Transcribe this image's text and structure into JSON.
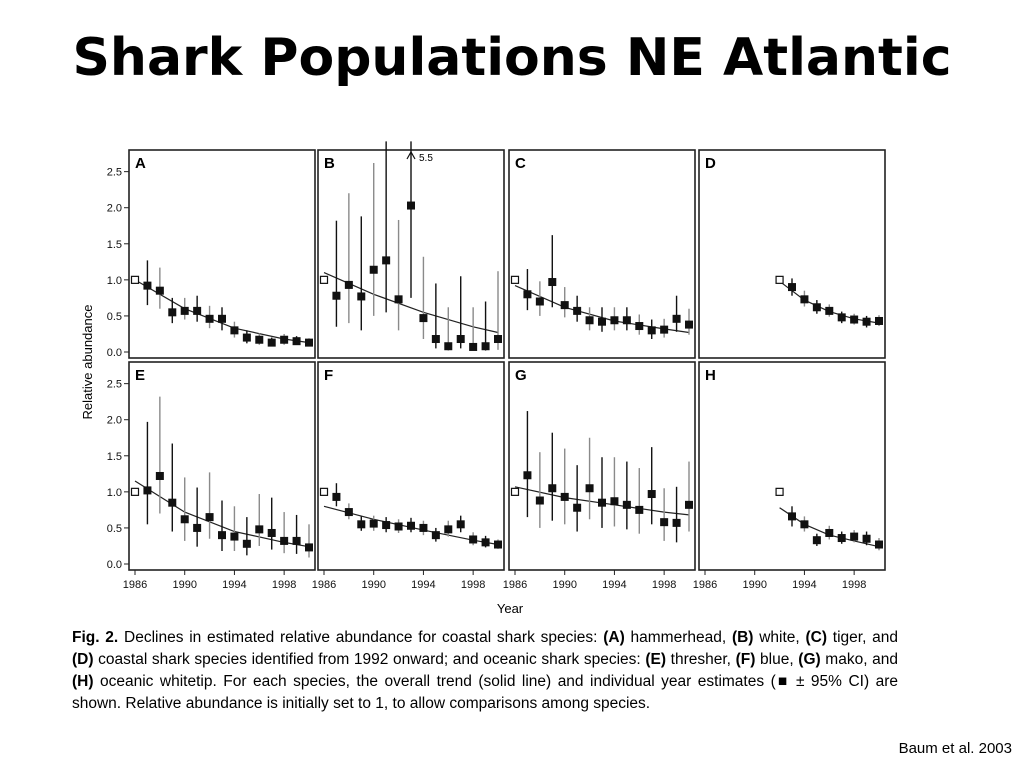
{
  "slide": {
    "title": "Shark Populations NE Atlantic",
    "credit": "Baum et al. 2003"
  },
  "caption": {
    "fig_label": "Fig. 2.",
    "text": [
      {
        "t": " Declines in estimated relative abundance for coastal shark species: ",
        "b": false
      },
      {
        "t": "(A)",
        "b": true
      },
      {
        "t": " hammerhead, ",
        "b": false
      },
      {
        "t": "(B)",
        "b": true
      },
      {
        "t": " white, ",
        "b": false
      },
      {
        "t": "(C)",
        "b": true
      },
      {
        "t": " tiger, and ",
        "b": false
      },
      {
        "t": "(D)",
        "b": true
      },
      {
        "t": " coastal shark species identified from 1992 onward; and oceanic shark species: ",
        "b": false
      },
      {
        "t": "(E)",
        "b": true
      },
      {
        "t": " thresher, ",
        "b": false
      },
      {
        "t": "(F)",
        "b": true
      },
      {
        "t": " blue, ",
        "b": false
      },
      {
        "t": "(G)",
        "b": true
      },
      {
        "t": " mako, and ",
        "b": false
      },
      {
        "t": "(H)",
        "b": true
      },
      {
        "t": " oceanic whitetip. For each species, the overall trend (solid line) and individual year estimates (",
        "b": false
      },
      {
        "t": "■",
        "b": true
      },
      {
        "t": " ± 95% CI) are shown. Relative abundance is initially set to 1, to allow comparisons among species.",
        "b": false
      }
    ]
  },
  "chart_data": {
    "type": "scatter",
    "xlabel": "Year",
    "ylabel": "Relative abundance",
    "xlim": [
      1986,
      2000
    ],
    "ylim": [
      0,
      2.8
    ],
    "xticks": [
      1986,
      1990,
      1994,
      1998
    ],
    "yticks": [
      0.0,
      0.5,
      1.0,
      1.5,
      2.0,
      2.5
    ],
    "ytick_labels": [
      "0.0",
      "0.5",
      "1.0",
      "1.5",
      "2.0",
      "2.5"
    ],
    "colors": {
      "marker": "#111111",
      "ci": "#8a8a8a",
      "ci_dark": "#111111",
      "trend": "#222222",
      "frame": "#222222"
    },
    "panels": [
      {
        "label": "A",
        "baseline_year": 1986,
        "trend": [
          [
            1986,
            1.0
          ],
          [
            1990,
            0.6
          ],
          [
            1994,
            0.33
          ],
          [
            1998,
            0.18
          ],
          [
            2000,
            0.13
          ]
        ],
        "years": [
          1987,
          1988,
          1989,
          1990,
          1991,
          1992,
          1993,
          1994,
          1995,
          1996,
          1997,
          1998,
          1999,
          2000
        ],
        "values": [
          0.92,
          0.85,
          0.55,
          0.57,
          0.57,
          0.46,
          0.46,
          0.3,
          0.2,
          0.17,
          0.13,
          0.17,
          0.15,
          0.13
        ],
        "lower": [
          0.65,
          0.6,
          0.4,
          0.45,
          0.42,
          0.33,
          0.3,
          0.2,
          0.12,
          0.1,
          0.08,
          0.1,
          0.1,
          0.09
        ],
        "upper": [
          1.27,
          1.17,
          0.75,
          0.75,
          0.78,
          0.64,
          0.62,
          0.42,
          0.3,
          0.26,
          0.2,
          0.25,
          0.22,
          0.19
        ]
      },
      {
        "label": "B",
        "baseline_year": 1986,
        "note": "5.5",
        "trend": [
          [
            1986,
            1.1
          ],
          [
            1990,
            0.8
          ],
          [
            1994,
            0.55
          ],
          [
            1998,
            0.35
          ],
          [
            2000,
            0.27
          ]
        ],
        "years": [
          1987,
          1988,
          1989,
          1990,
          1991,
          1992,
          1993,
          1994,
          1995,
          1996,
          1997,
          1998,
          1999,
          2000
        ],
        "values": [
          0.78,
          0.93,
          0.77,
          1.14,
          1.27,
          0.73,
          2.03,
          0.47,
          0.18,
          0.08,
          0.18,
          0.07,
          0.08,
          0.18
        ],
        "lower": [
          0.35,
          0.4,
          0.3,
          0.5,
          0.55,
          0.3,
          0.75,
          0.18,
          0.05,
          0.02,
          0.05,
          0.02,
          0.02,
          0.03
        ],
        "upper": [
          1.82,
          2.2,
          1.88,
          2.62,
          2.92,
          1.83,
          2.92,
          1.32,
          0.95,
          0.62,
          1.05,
          0.62,
          0.7,
          1.12
        ],
        "arrow_year": 1993
      },
      {
        "label": "C",
        "baseline_year": 1986,
        "trend": [
          [
            1986,
            0.92
          ],
          [
            1990,
            0.62
          ],
          [
            1994,
            0.43
          ],
          [
            1998,
            0.32
          ],
          [
            2000,
            0.27
          ]
        ],
        "years": [
          1987,
          1988,
          1989,
          1990,
          1991,
          1992,
          1993,
          1994,
          1995,
          1996,
          1997,
          1998,
          1999,
          2000
        ],
        "values": [
          0.8,
          0.7,
          0.97,
          0.65,
          0.57,
          0.44,
          0.42,
          0.44,
          0.44,
          0.36,
          0.3,
          0.31,
          0.46,
          0.38
        ],
        "lower": [
          0.58,
          0.5,
          0.62,
          0.48,
          0.42,
          0.3,
          0.28,
          0.3,
          0.3,
          0.24,
          0.18,
          0.2,
          0.28,
          0.24
        ],
        "upper": [
          1.15,
          0.98,
          1.62,
          0.9,
          0.78,
          0.62,
          0.62,
          0.62,
          0.62,
          0.52,
          0.45,
          0.46,
          0.78,
          0.6
        ]
      },
      {
        "label": "D",
        "baseline_year": 1992,
        "trend": [
          [
            1992,
            0.98
          ],
          [
            1994,
            0.72
          ],
          [
            1996,
            0.56
          ],
          [
            1998,
            0.46
          ],
          [
            2000,
            0.4
          ]
        ],
        "years": [
          1993,
          1994,
          1995,
          1996,
          1997,
          1998,
          1999,
          2000
        ],
        "values": [
          0.9,
          0.73,
          0.62,
          0.57,
          0.48,
          0.45,
          0.42,
          0.43
        ],
        "lower": [
          0.78,
          0.63,
          0.53,
          0.49,
          0.4,
          0.38,
          0.34,
          0.36
        ],
        "upper": [
          1.02,
          0.85,
          0.72,
          0.66,
          0.56,
          0.53,
          0.5,
          0.51
        ]
      },
      {
        "label": "E",
        "baseline_year": 1986,
        "trend": [
          [
            1986,
            1.15
          ],
          [
            1990,
            0.72
          ],
          [
            1994,
            0.45
          ],
          [
            1998,
            0.3
          ],
          [
            2000,
            0.24
          ]
        ],
        "years": [
          1987,
          1988,
          1989,
          1990,
          1991,
          1992,
          1993,
          1994,
          1995,
          1996,
          1997,
          1998,
          1999,
          2000
        ],
        "values": [
          1.02,
          1.22,
          0.85,
          0.62,
          0.5,
          0.65,
          0.4,
          0.38,
          0.28,
          0.48,
          0.43,
          0.32,
          0.32,
          0.23
        ],
        "lower": [
          0.55,
          0.7,
          0.45,
          0.32,
          0.24,
          0.35,
          0.18,
          0.18,
          0.12,
          0.25,
          0.2,
          0.15,
          0.14,
          0.09
        ],
        "upper": [
          1.97,
          2.32,
          1.67,
          1.2,
          1.06,
          1.27,
          0.88,
          0.8,
          0.65,
          0.97,
          0.92,
          0.72,
          0.68,
          0.55
        ]
      },
      {
        "label": "F",
        "baseline_year": 1986,
        "trend": [
          [
            1986,
            0.8
          ],
          [
            1990,
            0.62
          ],
          [
            1994,
            0.47
          ],
          [
            1998,
            0.33
          ],
          [
            2000,
            0.27
          ]
        ],
        "years": [
          1987,
          1988,
          1989,
          1990,
          1991,
          1992,
          1993,
          1994,
          1995,
          1996,
          1997,
          1998,
          1999,
          2000
        ],
        "values": [
          0.93,
          0.72,
          0.55,
          0.56,
          0.54,
          0.52,
          0.53,
          0.5,
          0.4,
          0.48,
          0.55,
          0.34,
          0.3,
          0.27
        ],
        "lower": [
          0.8,
          0.62,
          0.46,
          0.46,
          0.44,
          0.43,
          0.44,
          0.4,
          0.31,
          0.38,
          0.44,
          0.26,
          0.23,
          0.21
        ],
        "upper": [
          1.12,
          0.84,
          0.66,
          0.67,
          0.65,
          0.62,
          0.64,
          0.6,
          0.5,
          0.6,
          0.67,
          0.44,
          0.39,
          0.34
        ]
      },
      {
        "label": "G",
        "baseline_year": 1986,
        "trend": [
          [
            1986,
            1.07
          ],
          [
            1990,
            0.92
          ],
          [
            1994,
            0.82
          ],
          [
            1998,
            0.72
          ],
          [
            2000,
            0.68
          ]
        ],
        "years": [
          1987,
          1988,
          1989,
          1990,
          1991,
          1992,
          1993,
          1994,
          1995,
          1996,
          1997,
          1998,
          1999,
          2000
        ],
        "values": [
          1.23,
          0.88,
          1.05,
          0.93,
          0.78,
          1.05,
          0.85,
          0.87,
          0.82,
          0.75,
          0.97,
          0.58,
          0.57,
          0.82
        ],
        "lower": [
          0.65,
          0.5,
          0.6,
          0.55,
          0.45,
          0.62,
          0.5,
          0.52,
          0.48,
          0.42,
          0.55,
          0.32,
          0.3,
          0.45
        ],
        "upper": [
          2.12,
          1.55,
          1.82,
          1.6,
          1.37,
          1.75,
          1.48,
          1.48,
          1.42,
          1.33,
          1.62,
          1.05,
          1.07,
          1.42
        ]
      },
      {
        "label": "H",
        "baseline_year": 1992,
        "trend": [
          [
            1992,
            0.78
          ],
          [
            1994,
            0.55
          ],
          [
            1996,
            0.4
          ],
          [
            1998,
            0.32
          ],
          [
            2000,
            0.24
          ]
        ],
        "years": [
          1993,
          1994,
          1995,
          1996,
          1997,
          1998,
          1999,
          2000
        ],
        "values": [
          0.66,
          0.55,
          0.33,
          0.43,
          0.36,
          0.38,
          0.35,
          0.27
        ],
        "lower": [
          0.52,
          0.45,
          0.25,
          0.34,
          0.28,
          0.3,
          0.26,
          0.19
        ],
        "upper": [
          0.8,
          0.66,
          0.42,
          0.53,
          0.45,
          0.47,
          0.45,
          0.36
        ]
      }
    ]
  }
}
